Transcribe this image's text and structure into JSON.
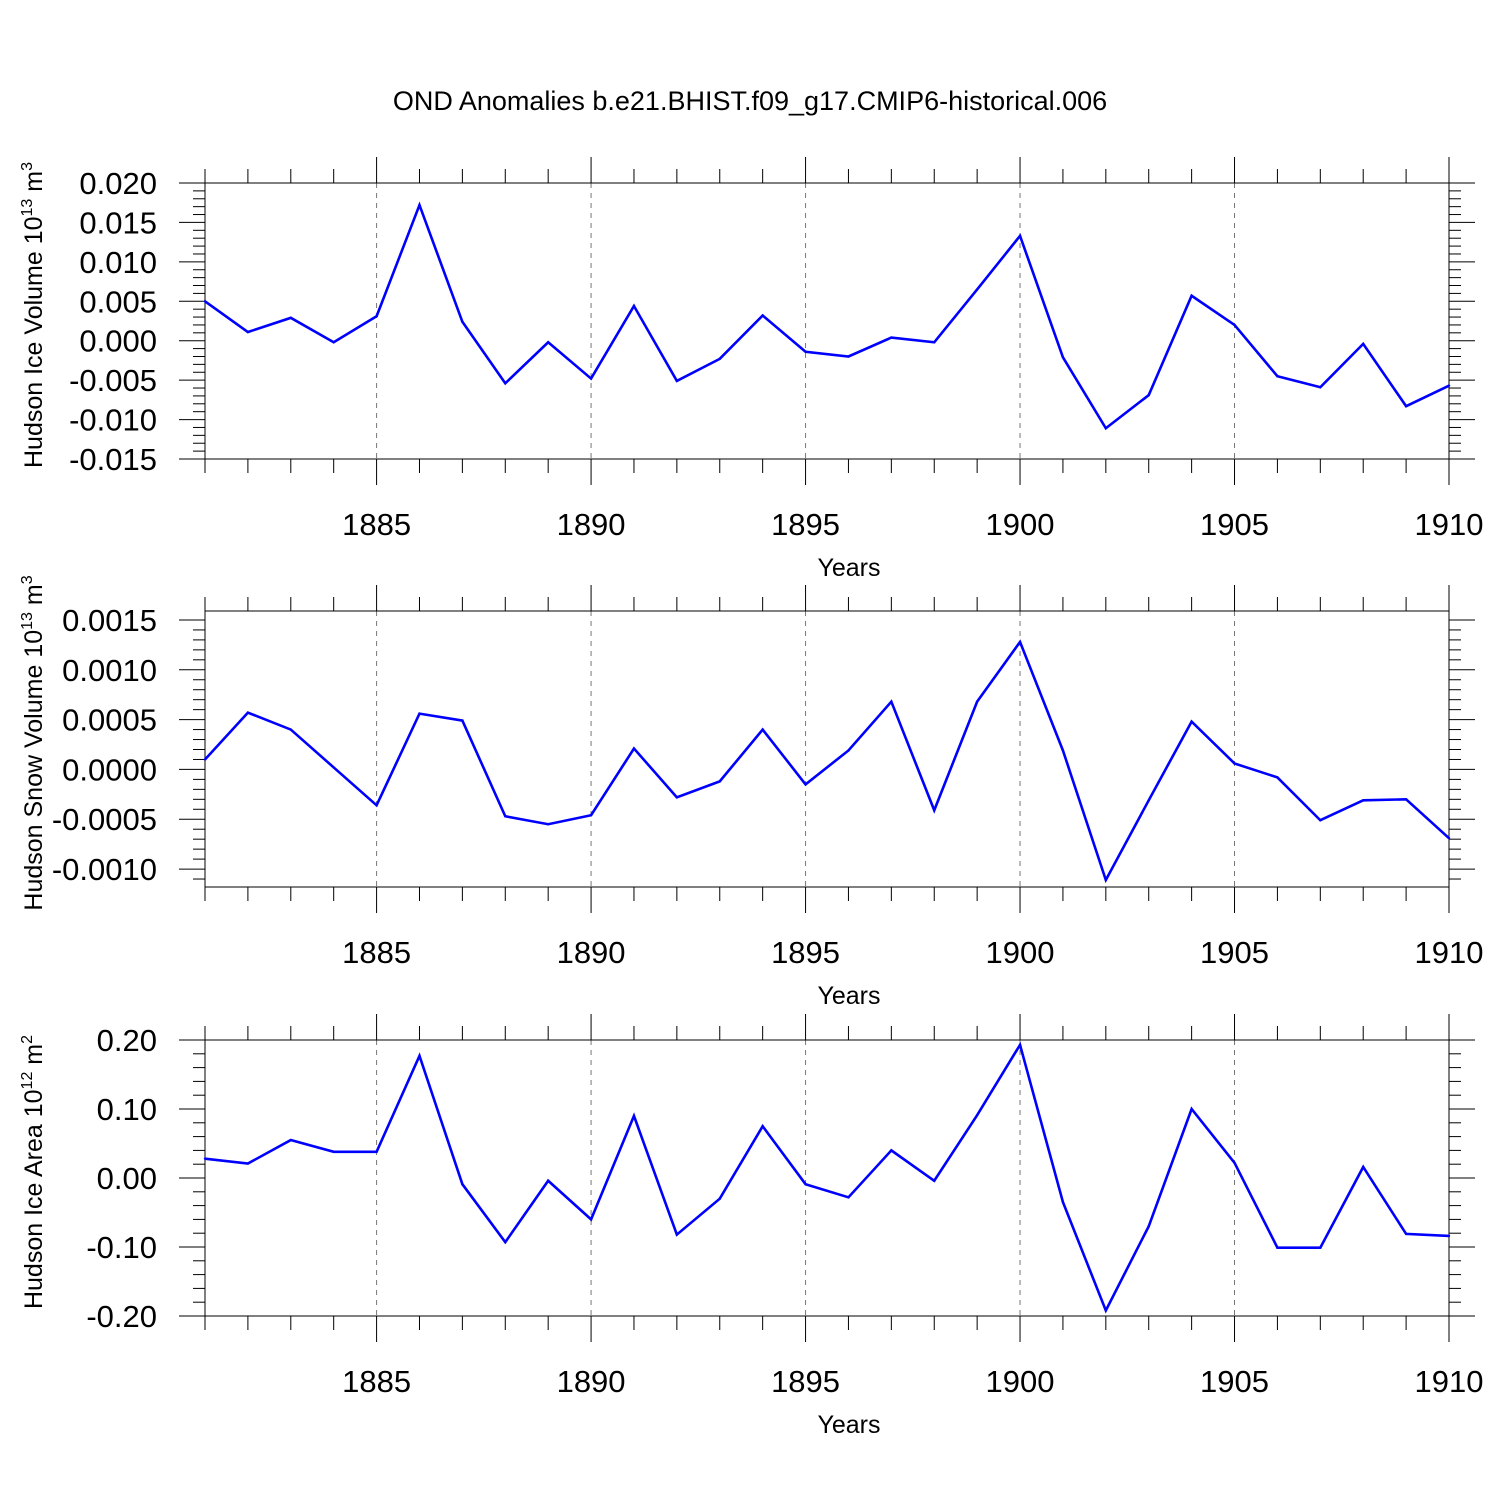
{
  "title": "OND Anomalies b.e21.BHIST.f09_g17.CMIP6-historical.006",
  "colors": {
    "line": "#0000ff",
    "axis": "#000000",
    "grid": "#777777",
    "background": "#ffffff"
  },
  "chart_data": [
    {
      "type": "line",
      "title": "OND Anomalies b.e21.BHIST.f09_g17.CMIP6-historical.006",
      "xlabel": "Years",
      "ylabel": "Hudson Ice Volume 10",
      "ylabel_exp": "13",
      "ylabel_unit": "m",
      "ylabel_unit_exp": "3",
      "xlim": [
        1881,
        1910
      ],
      "ylim": [
        -0.015,
        0.02
      ],
      "x_ticks": [
        1885,
        1890,
        1895,
        1900,
        1905,
        1910
      ],
      "y_ticks": [
        -0.015,
        -0.01,
        -0.005,
        0.0,
        0.005,
        0.01,
        0.015,
        0.02
      ],
      "y_tick_labels": [
        "-0.015",
        "-0.010",
        "-0.005",
        "0.000",
        "0.005",
        "0.010",
        "0.015",
        "0.020"
      ],
      "grid": "vertical dashed at major x ticks",
      "series": [
        {
          "x": [
            1881,
            1882,
            1883,
            1884,
            1885,
            1886,
            1887,
            1888,
            1889,
            1890,
            1891,
            1892,
            1893,
            1894,
            1895,
            1896,
            1897,
            1898,
            1899,
            1900,
            1901,
            1902,
            1903,
            1904,
            1905,
            1906,
            1907,
            1908,
            1909,
            1910
          ],
          "values": [
            0.005,
            0.0011,
            0.0029,
            -0.0002,
            0.0031,
            0.0172,
            0.0024,
            -0.0054,
            -0.0002,
            -0.0048,
            0.0044,
            -0.0051,
            -0.0023,
            0.0032,
            -0.0014,
            -0.002,
            0.0004,
            -0.0002,
            0.0065,
            0.0133,
            -0.0021,
            -0.0111,
            -0.0069,
            0.0057,
            0.002,
            -0.0045,
            -0.0059,
            -0.0004,
            -0.0083,
            -0.0057
          ]
        }
      ]
    },
    {
      "type": "line",
      "xlabel": "Years",
      "ylabel": "Hudson Snow Volume 10",
      "ylabel_exp": "13",
      "ylabel_unit": "m",
      "ylabel_unit_exp": "3",
      "xlim": [
        1881,
        1910
      ],
      "ylim": [
        -0.00118,
        0.00159
      ],
      "x_ticks": [
        1885,
        1890,
        1895,
        1900,
        1905,
        1910
      ],
      "y_ticks": [
        -0.001,
        -0.0005,
        0.0,
        0.0005,
        0.001,
        0.0015
      ],
      "y_tick_labels": [
        "-0.0010",
        "-0.0005",
        "0.0000",
        "0.0005",
        "0.0010",
        "0.0015"
      ],
      "grid": "vertical dashed at major x ticks",
      "series": [
        {
          "x": [
            1881,
            1882,
            1883,
            1884,
            1885,
            1886,
            1887,
            1888,
            1889,
            1890,
            1891,
            1892,
            1893,
            1894,
            1895,
            1896,
            1897,
            1898,
            1899,
            1900,
            1901,
            1902,
            1903,
            1904,
            1905,
            1906,
            1907,
            1908,
            1909,
            1910
          ],
          "values": [
            0.0001,
            0.00057,
            0.0004,
            2e-05,
            -0.00036,
            0.00056,
            0.00049,
            -0.00047,
            -0.00055,
            -0.00046,
            0.00021,
            -0.00028,
            -0.00012,
            0.0004,
            -0.00015,
            0.00019,
            0.00068,
            -0.00041,
            0.00068,
            0.00128,
            0.00019,
            -0.00111,
            -0.00031,
            0.00048,
            6e-05,
            -8e-05,
            -0.00051,
            -0.00031,
            -0.0003,
            -0.00069
          ]
        }
      ]
    },
    {
      "type": "line",
      "xlabel": "Years",
      "ylabel": "Hudson Ice Area 10",
      "ylabel_exp": "12",
      "ylabel_unit": "m",
      "ylabel_unit_exp": "2",
      "xlim": [
        1881,
        1910
      ],
      "ylim": [
        -0.2,
        0.2
      ],
      "x_ticks": [
        1885,
        1890,
        1895,
        1900,
        1905,
        1910
      ],
      "y_ticks": [
        -0.2,
        -0.1,
        0.0,
        0.1,
        0.2
      ],
      "y_tick_labels": [
        "-0.20",
        "-0.10",
        "0.00",
        "0.10",
        "0.20"
      ],
      "grid": "vertical dashed at major x ticks",
      "series": [
        {
          "x": [
            1881,
            1882,
            1883,
            1884,
            1885,
            1886,
            1887,
            1888,
            1889,
            1890,
            1891,
            1892,
            1893,
            1894,
            1895,
            1896,
            1897,
            1898,
            1899,
            1900,
            1901,
            1902,
            1903,
            1904,
            1905,
            1906,
            1907,
            1908,
            1909,
            1910
          ],
          "values": [
            0.028,
            0.021,
            0.055,
            0.038,
            0.038,
            0.177,
            -0.009,
            -0.093,
            -0.004,
            -0.06,
            0.09,
            -0.082,
            -0.03,
            0.075,
            -0.009,
            -0.028,
            0.04,
            -0.004,
            0.091,
            0.193,
            -0.035,
            -0.192,
            -0.07,
            0.1,
            0.022,
            -0.101,
            -0.101,
            0.016,
            -0.081,
            -0.084
          ]
        }
      ]
    }
  ]
}
